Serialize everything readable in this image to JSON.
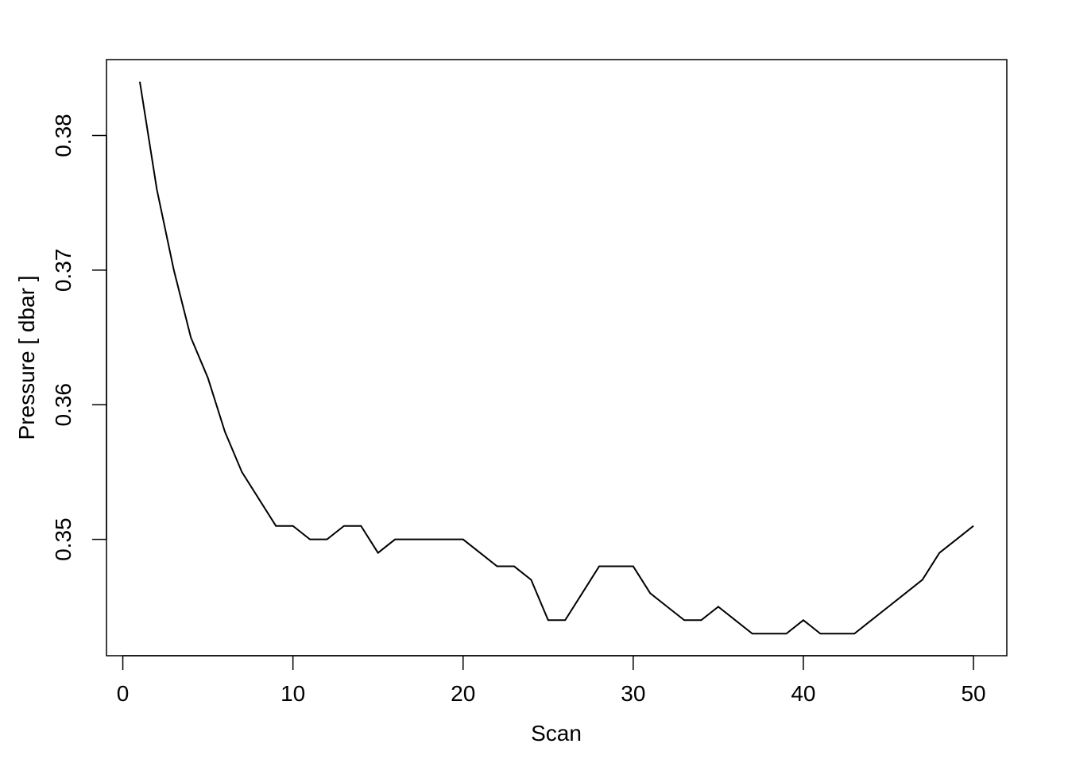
{
  "chart_data": {
    "type": "line",
    "xlabel": "Scan",
    "ylabel": "Pressure [ dbar ]",
    "x": [
      1,
      2,
      3,
      4,
      5,
      6,
      7,
      8,
      9,
      10,
      11,
      12,
      13,
      14,
      15,
      16,
      17,
      18,
      19,
      20,
      21,
      22,
      23,
      24,
      25,
      26,
      27,
      28,
      29,
      30,
      31,
      32,
      33,
      34,
      35,
      36,
      37,
      38,
      39,
      40,
      41,
      42,
      43,
      44,
      45,
      46,
      47,
      48,
      49,
      50
    ],
    "values": [
      0.384,
      0.376,
      0.37,
      0.365,
      0.362,
      0.358,
      0.355,
      0.353,
      0.351,
      0.351,
      0.35,
      0.35,
      0.351,
      0.351,
      0.349,
      0.35,
      0.35,
      0.35,
      0.35,
      0.35,
      0.349,
      0.348,
      0.348,
      0.347,
      0.344,
      0.344,
      0.346,
      0.348,
      0.348,
      0.348,
      0.346,
      0.345,
      0.344,
      0.344,
      0.345,
      0.344,
      0.343,
      0.343,
      0.343,
      0.344,
      0.343,
      0.343,
      0.343,
      0.344,
      0.345,
      0.346,
      0.347,
      0.349,
      0.35,
      0.351
    ],
    "color": "#000000",
    "xlim": [
      -0.96,
      51.96
    ],
    "xticks": [
      0,
      10,
      20,
      30,
      40,
      50
    ],
    "ylim": [
      0.34136,
      0.38564
    ],
    "yticks": [
      0.35,
      0.36,
      0.37,
      0.38
    ],
    "grid": false
  }
}
